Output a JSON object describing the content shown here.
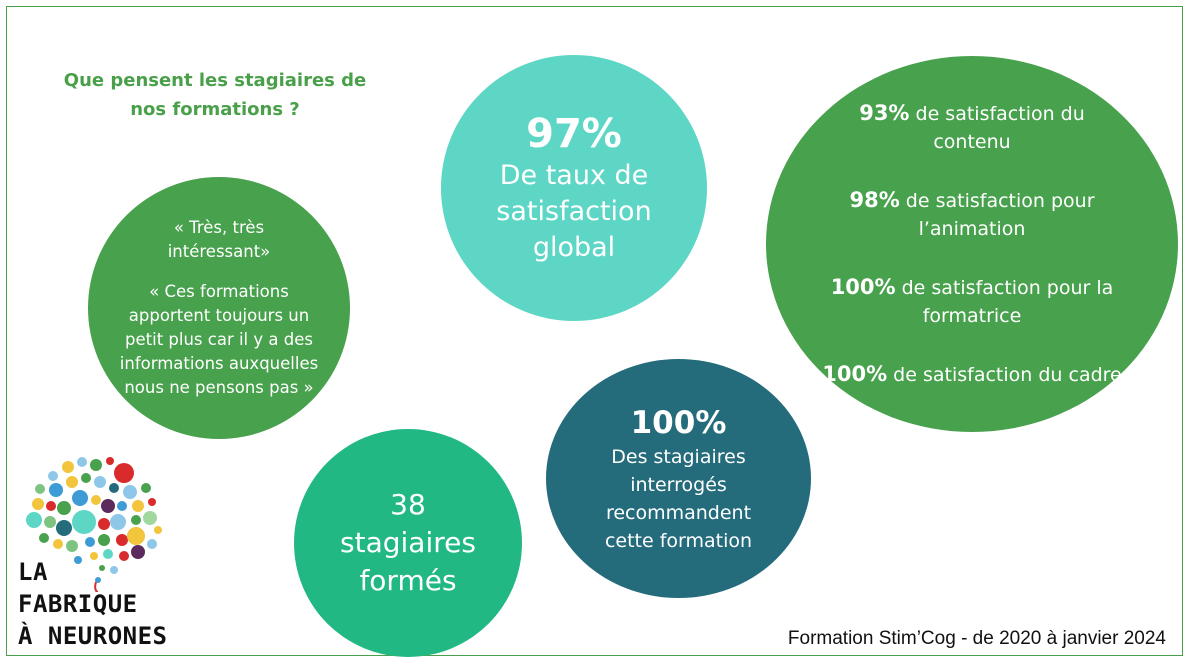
{
  "headline": {
    "line1": "Que pensent les stagiaires de",
    "line2": "nos formations ?"
  },
  "quote_bubble": {
    "quote1_line1": "« Très, très",
    "quote1_line2": "intéressant»",
    "quote2": "« Ces formations apportent toujours un petit plus car il y a des informations auxquelles nous ne pensons pas »"
  },
  "global_bubble": {
    "value": "97%",
    "line1": "De taux de",
    "line2": "satisfaction",
    "line3": "global"
  },
  "detail_bubble": {
    "items": [
      {
        "pct": "93%",
        "text": " de satisfaction du contenu"
      },
      {
        "pct": "98%",
        "text": " de satisfaction pour l’animation"
      },
      {
        "pct": "100%",
        "text": " de satisfaction pour la formatrice"
      },
      {
        "pct": "100%",
        "text": " de satisfaction du cadre"
      }
    ]
  },
  "trained_bubble": {
    "value": "38",
    "line1": "stagiaires",
    "line2": "formés"
  },
  "reco_bubble": {
    "value": "100%",
    "line1": "Des stagiaires",
    "line2": "interrogés",
    "line3": "recommandent",
    "line4": "cette formation"
  },
  "logo": {
    "line1": "LA",
    "line2": "FABRIQUE",
    "line3": "À NEURONES"
  },
  "footer": {
    "text": "Formation Stim’Cog -  de 2020 à janvier 2024"
  },
  "colors": {
    "green": "#48a14d",
    "turquoise": "#5dd6c6",
    "emerald": "#21b884",
    "petrol": "#246b7c"
  }
}
